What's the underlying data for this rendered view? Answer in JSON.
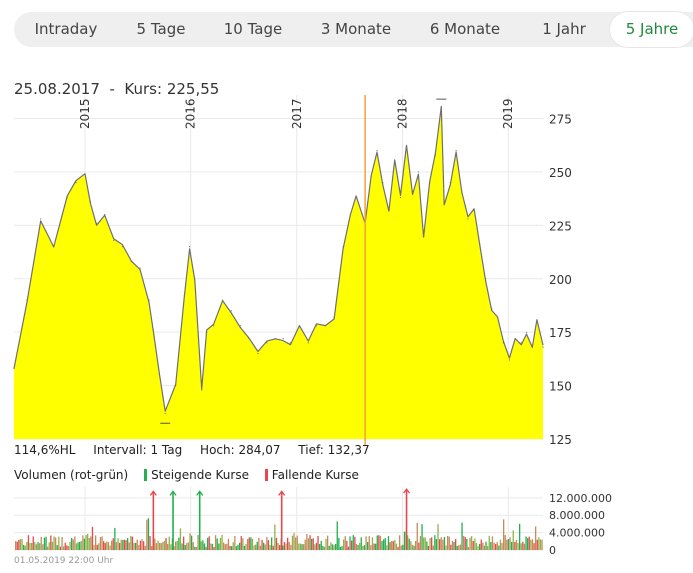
{
  "tabs": [
    {
      "label": "Intraday",
      "active": false
    },
    {
      "label": "5 Tage",
      "active": false
    },
    {
      "label": "10 Tage",
      "active": false
    },
    {
      "label": "3 Monate",
      "active": false
    },
    {
      "label": "6 Monate",
      "active": false
    },
    {
      "label": "1 Jahr",
      "active": false
    },
    {
      "label": "5 Jahre",
      "active": true
    }
  ],
  "info": {
    "date": "25.08.2017",
    "sep": "-",
    "kurs_label": "Kurs:",
    "kurs_value": "225,55"
  },
  "stats": {
    "hl": "114,6%HL",
    "intervall": "Intervall: 1 Tag",
    "hoch": "Hoch:  284,07",
    "tief": "Tief:  132,37"
  },
  "volume_legend": {
    "title": "Volumen (rot-grün)",
    "up": "Steigende Kurse",
    "down": "Fallende Kurse",
    "up_color": "#22b14c",
    "down_color": "#e8474c"
  },
  "timestamp": "01.05.2019 22:00 Uhr",
  "colors": {
    "area_fill": "#ffff00",
    "line": "#6f6f6f",
    "marker": "#f5a043",
    "grid": "#e9e9e9",
    "active_tab": "#1f8a3c"
  },
  "chart_data": [
    {
      "type": "area",
      "x_ticks": [
        "2015",
        "2016",
        "2017",
        "2018",
        "2019"
      ],
      "x_tick_dates": [
        "2015-01-01",
        "2016-01-01",
        "2017-01-01",
        "2018-01-01",
        "2019-01-01"
      ],
      "xlim": [
        "2014-05-01",
        "2019-05-01"
      ],
      "y_ticks": [
        125,
        150,
        175,
        200,
        225,
        250,
        275
      ],
      "ylim": [
        125,
        286
      ],
      "marker_date": "2017-08-25",
      "marker_value": 225.55,
      "high": 284.07,
      "low": 132.37,
      "series": [
        {
          "x": [
            "2014-05-01",
            "2014-06-15",
            "2014-08-01",
            "2014-09-15",
            "2014-11-01",
            "2014-12-01",
            "2015-01-01",
            "2015-01-20",
            "2015-02-10",
            "2015-03-10",
            "2015-04-10",
            "2015-05-10",
            "2015-06-10",
            "2015-07-10",
            "2015-08-10",
            "2015-08-25",
            "2015-09-15",
            "2015-10-05",
            "2015-11-10",
            "2015-12-10",
            "2015-12-28",
            "2016-01-15",
            "2016-02-08",
            "2016-02-25",
            "2016-03-20",
            "2016-04-20",
            "2016-05-20",
            "2016-06-20",
            "2016-07-20",
            "2016-08-20",
            "2016-09-20",
            "2016-10-20",
            "2016-11-15",
            "2016-12-10",
            "2017-01-10",
            "2017-02-10",
            "2017-03-10",
            "2017-04-10",
            "2017-05-10",
            "2017-06-10",
            "2017-07-05",
            "2017-07-25",
            "2017-08-25",
            "2017-09-15",
            "2017-10-05",
            "2017-10-25",
            "2017-11-15",
            "2017-12-05",
            "2017-12-25",
            "2018-01-15",
            "2018-02-05",
            "2018-02-25",
            "2018-03-15",
            "2018-04-05",
            "2018-04-25",
            "2018-05-15",
            "2018-05-25",
            "2018-06-15",
            "2018-07-05",
            "2018-07-25",
            "2018-08-15",
            "2018-09-05",
            "2018-09-25",
            "2018-10-15",
            "2018-11-05",
            "2018-11-25",
            "2018-12-15",
            "2019-01-05",
            "2019-01-25",
            "2019-02-15",
            "2019-03-05",
            "2019-03-25",
            "2019-04-10",
            "2019-05-01"
          ],
          "y": [
            158,
            190,
            228,
            215,
            238,
            245,
            249,
            236,
            226,
            230,
            218,
            215,
            208,
            205,
            190,
            176,
            155,
            137,
            150,
            192,
            215,
            200,
            148,
            175,
            178,
            190,
            185,
            178,
            172,
            165,
            170,
            172,
            172,
            170,
            178,
            170,
            178,
            178,
            182,
            215,
            230,
            238,
            225,
            248,
            260,
            245,
            232,
            255,
            238,
            262,
            240,
            250,
            220,
            245,
            258,
            280,
            235,
            245,
            260,
            240,
            228,
            232,
            216,
            200,
            186,
            182,
            170,
            162,
            172,
            170,
            175,
            168,
            180,
            168
          ]
        }
      ]
    },
    {
      "type": "bar",
      "title": "Volumen (rot-grün)",
      "y_ticks": [
        "12.000.000",
        "8.000.000",
        "4.000.000",
        "0"
      ],
      "y_tick_values": [
        12000000,
        8000000,
        4000000,
        0
      ],
      "ylim": [
        0,
        14500000
      ],
      "series": [
        {
          "name": "Steigende Kurse",
          "color": "#22b14c",
          "peaks": [
            {
              "x": "2015-11-01",
              "value": 13500000
            },
            {
              "x": "2016-02-01",
              "value": 13500000
            }
          ]
        },
        {
          "name": "Fallende Kurse",
          "color": "#e8474c",
          "peaks": [
            {
              "x": "2015-08-25",
              "value": 13500000
            },
            {
              "x": "2016-11-10",
              "value": 13500000
            },
            {
              "x": "2018-01-15",
              "value": 14000000
            }
          ]
        }
      ]
    }
  ]
}
